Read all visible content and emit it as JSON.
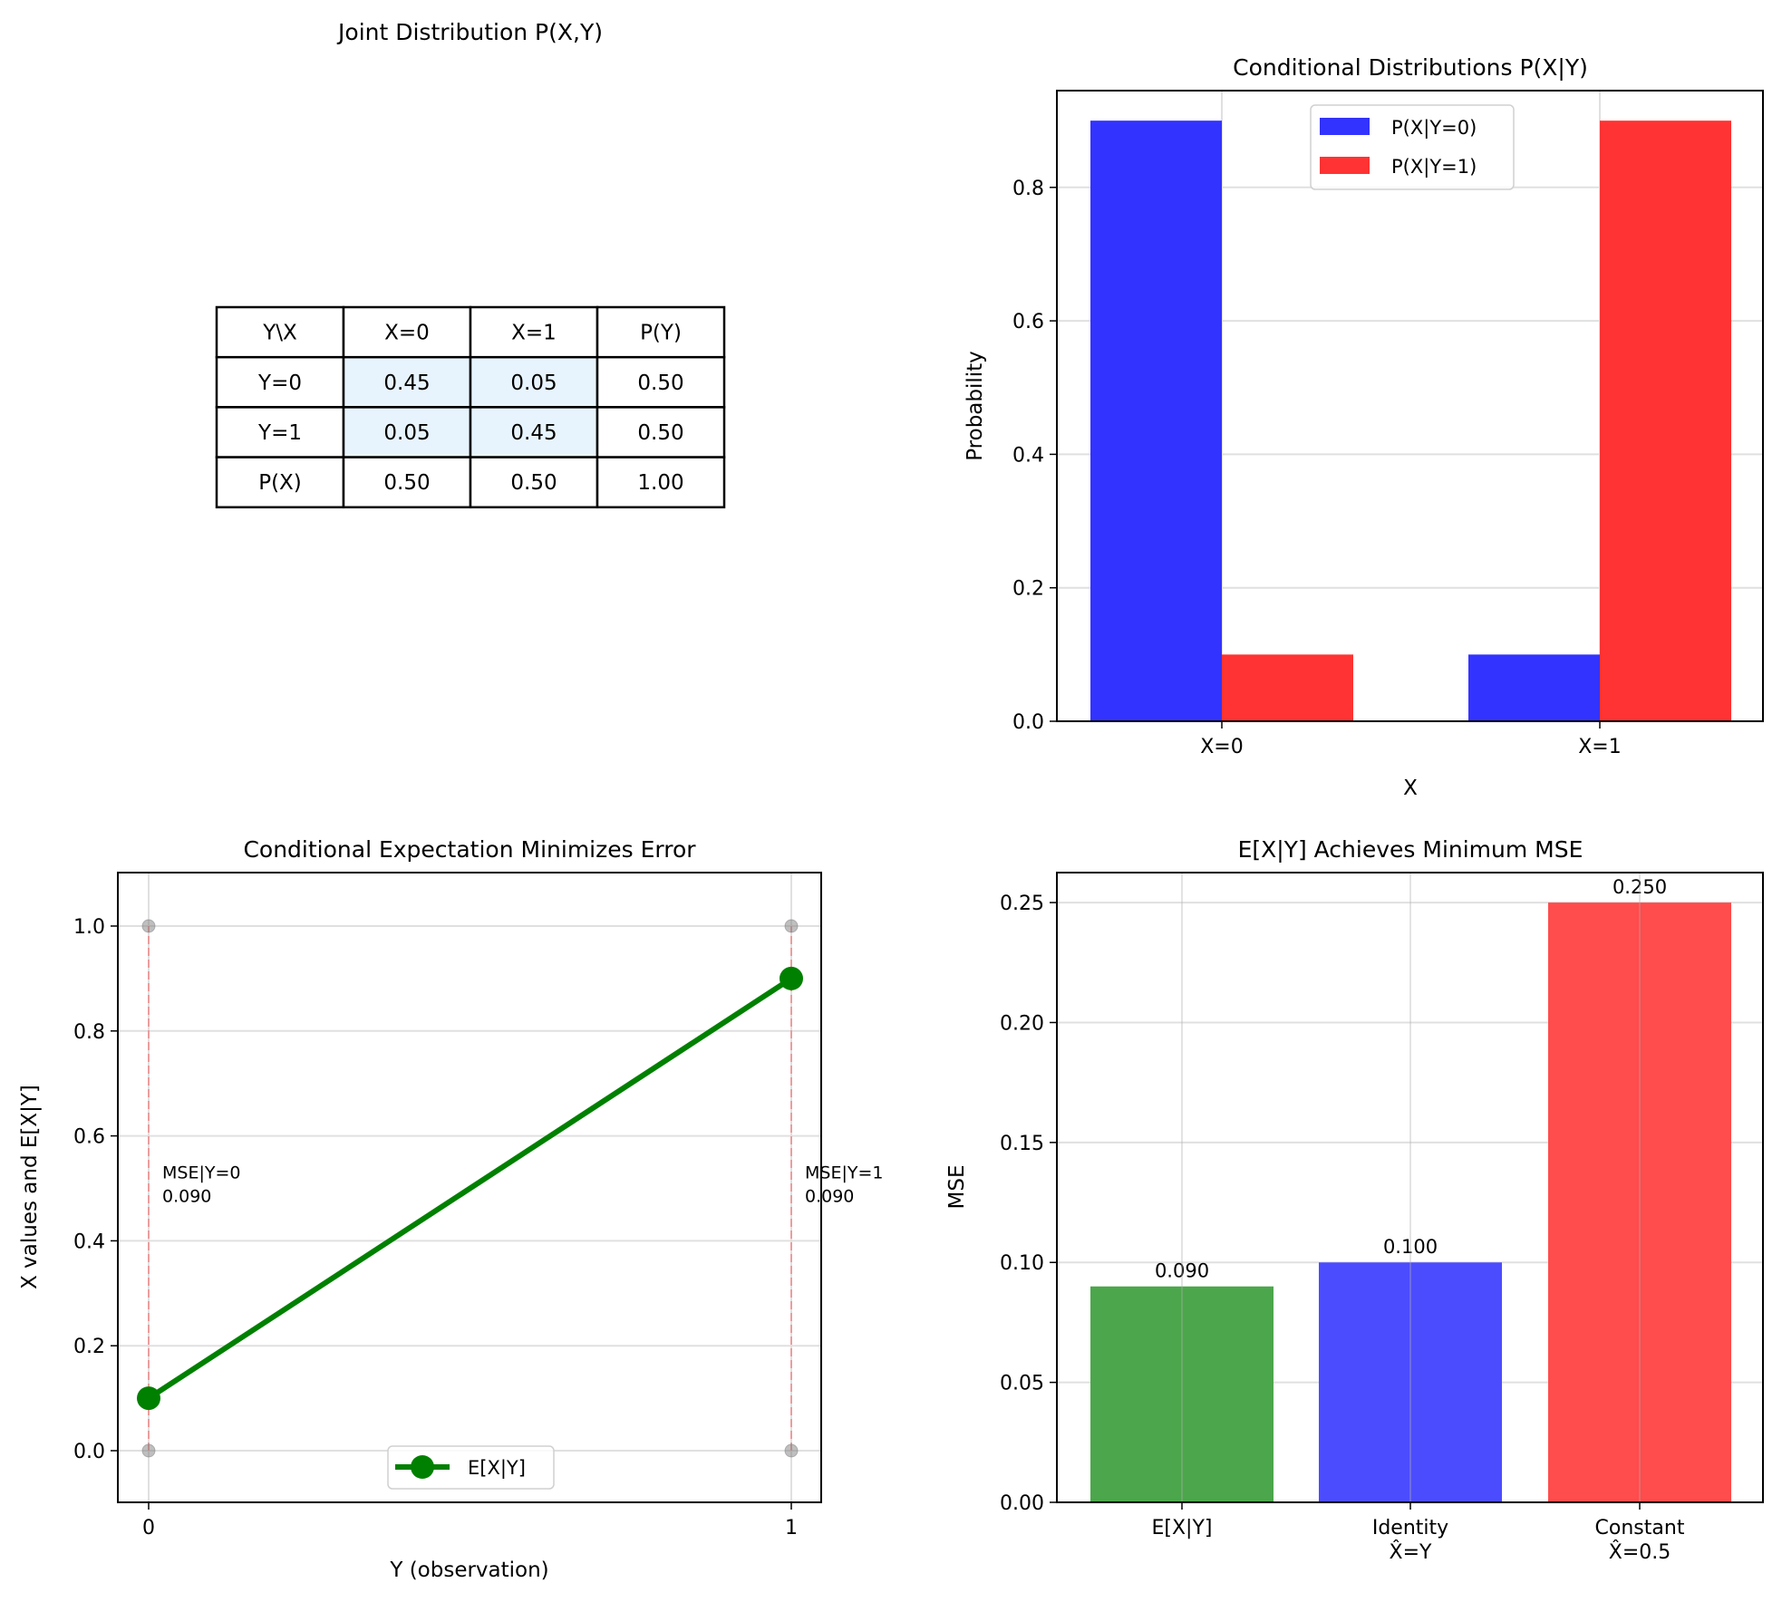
{
  "chart_data": [
    {
      "type": "table",
      "title": "Joint Distribution P(X,Y)",
      "columns": [
        "Y\\X",
        "X=0",
        "X=1",
        "P(Y)"
      ],
      "rows": [
        [
          "Y=0",
          "0.45",
          "0.05",
          "0.50"
        ],
        [
          "Y=1",
          "0.05",
          "0.45",
          "0.50"
        ],
        [
          "P(X)",
          "0.50",
          "0.50",
          "1.00"
        ]
      ],
      "highlight_color": "#e8f4fd"
    },
    {
      "type": "bar",
      "title": "Conditional Distributions P(X|Y)",
      "xlabel": "X",
      "ylabel": "Probability",
      "categories": [
        "X=0",
        "X=1"
      ],
      "series": [
        {
          "name": "P(X|Y=0)",
          "values": [
            0.9,
            0.1
          ],
          "color": "#3333ff"
        },
        {
          "name": "P(X|Y=1)",
          "values": [
            0.1,
            0.9
          ],
          "color": "#ff3333"
        }
      ],
      "ylim": [
        0,
        0.945
      ],
      "yticks": [
        "0.0",
        "0.2",
        "0.4",
        "0.6",
        "0.8"
      ],
      "ytick_values": [
        0,
        0.2,
        0.4,
        0.6,
        0.8
      ],
      "grid": true,
      "legend": "upper-center"
    },
    {
      "type": "line",
      "title": "Conditional Expectation Minimizes Error",
      "xlabel": "Y (observation)",
      "ylabel": "X values and E[X|Y]",
      "x": [
        0,
        1
      ],
      "series": [
        {
          "name": "E[X|Y]",
          "values": [
            0.1,
            0.9
          ],
          "color": "#008000"
        }
      ],
      "scatter_points": [
        {
          "x": 0,
          "y": 0
        },
        {
          "x": 0,
          "y": 1
        },
        {
          "x": 1,
          "y": 0
        },
        {
          "x": 1,
          "y": 1
        }
      ],
      "scatter_color": "#808080",
      "vlines": [
        0,
        1
      ],
      "vline_color": "#f08080",
      "annotations": [
        {
          "x": 0,
          "y": 0.5,
          "lines": [
            "MSE|Y=0",
            "0.090"
          ]
        },
        {
          "x": 1,
          "y": 0.5,
          "lines": [
            "MSE|Y=1",
            "0.090"
          ]
        }
      ],
      "xlim": [
        -0.05,
        1.05
      ],
      "ylim": [
        -0.1,
        1.1
      ],
      "xticks": [
        "0",
        "1"
      ],
      "xtick_values": [
        0,
        1
      ],
      "yticks": [
        "0.0",
        "0.2",
        "0.4",
        "0.6",
        "0.8",
        "1.0"
      ],
      "ytick_values": [
        0,
        0.2,
        0.4,
        0.6,
        0.8,
        1.0
      ],
      "grid": true,
      "legend": "lower-center"
    },
    {
      "type": "bar",
      "title": "E[X|Y] Achieves Minimum MSE",
      "xlabel": "",
      "ylabel": "MSE",
      "categories": [
        [
          "E[X|Y]"
        ],
        [
          "Identity",
          "X̂=Y"
        ],
        [
          "Constant",
          "X̂=0.5"
        ]
      ],
      "values": [
        0.09,
        0.1,
        0.25
      ],
      "value_labels": [
        "0.090",
        "0.100",
        "0.250"
      ],
      "colors": [
        "#4ca64c",
        "#4c4cff",
        "#ff4c4c"
      ],
      "ylim": [
        0,
        0.2625
      ],
      "yticks": [
        "0.00",
        "0.05",
        "0.10",
        "0.15",
        "0.20",
        "0.25"
      ],
      "ytick_values": [
        0,
        0.05,
        0.1,
        0.15,
        0.2,
        0.25
      ],
      "grid": true
    }
  ]
}
